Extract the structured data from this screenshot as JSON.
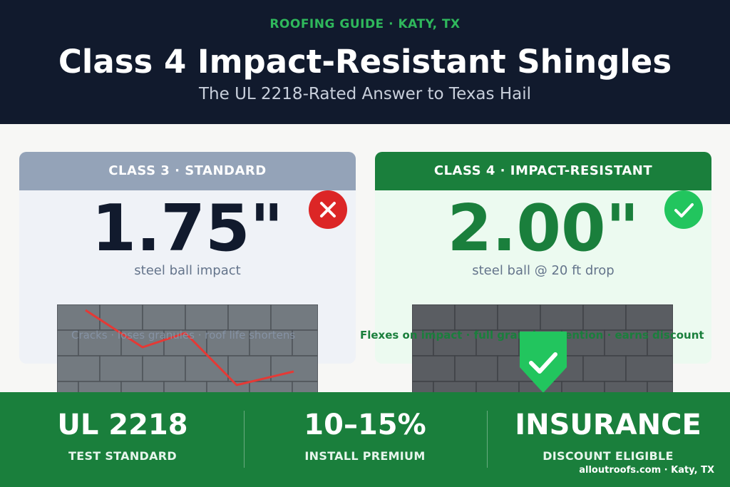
{
  "header": {
    "kicker": "ROOFING GUIDE  ·  KATY, TX",
    "title": "Class 4 Impact-Resistant Shingles",
    "subtitle": "The UL 2218-Rated Answer to Texas Hail"
  },
  "cards": {
    "standard": {
      "heading": "CLASS 3 · STANDARD",
      "value": "1.75\"",
      "detail": "steel ball impact",
      "caption": "Cracks · loses granules · roof life shortens",
      "icon": "x-icon",
      "color": "#94a3b8"
    },
    "impact": {
      "heading": "CLASS 4 · IMPACT-RESISTANT",
      "value": "2.00\"",
      "detail": "steel ball @ 20 ft drop",
      "caption": "Flexes on impact · full granule retention · earns discount",
      "icon": "check-icon",
      "color": "#1a7f3c"
    }
  },
  "stats": [
    {
      "value": "UL 2218",
      "label": "TEST STANDARD"
    },
    {
      "value": "10–15%",
      "label": "INSTALL PREMIUM"
    },
    {
      "value": "INSURANCE",
      "label": "DISCOUNT ELIGIBLE"
    }
  ],
  "footer": {
    "site": "alloutroofs.com  ·  Katy, TX"
  },
  "colors": {
    "navy": "#111a2d",
    "green": "#1a7f3c",
    "red": "#dc2626",
    "bright_green": "#22c55e"
  }
}
